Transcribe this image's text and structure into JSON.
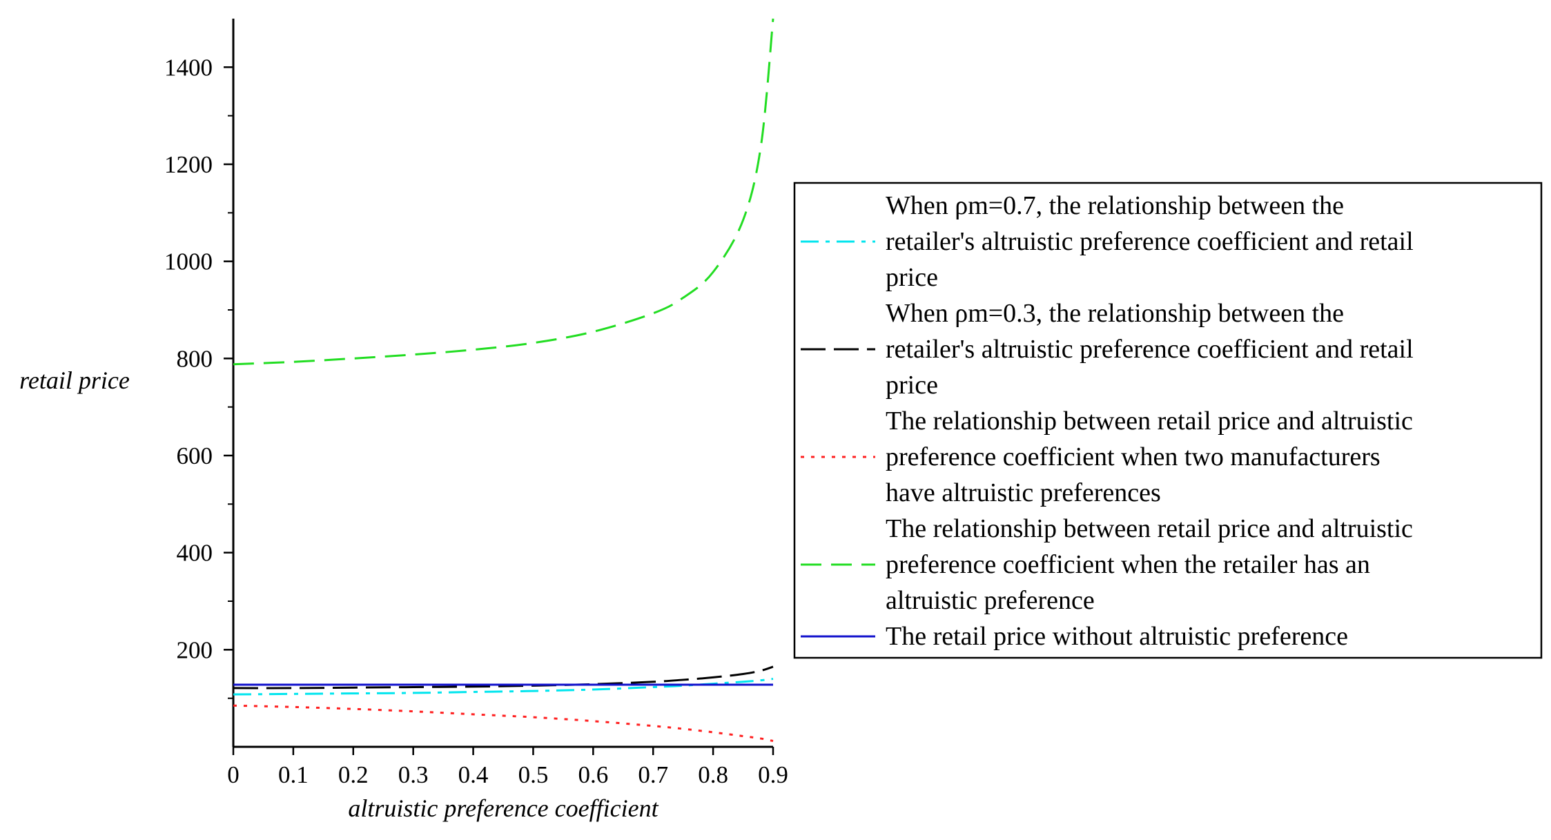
{
  "chart_data": {
    "type": "line",
    "title": "",
    "xlabel": "altruistic preference coefficient",
    "ylabel": "retail price",
    "xlim": [
      0,
      0.9
    ],
    "ylim": [
      0,
      1500
    ],
    "x_ticks": [
      0,
      0.1,
      0.2,
      0.3,
      0.4,
      0.5,
      0.6,
      0.7,
      0.8,
      0.9
    ],
    "x_tick_labels": [
      "0",
      "0.1",
      "0.2",
      "0.3",
      "0.4",
      "0.5",
      "0.6",
      "0.7",
      "0.8",
      "0.9"
    ],
    "y_ticks": [
      200,
      400,
      600,
      800,
      1000,
      1200,
      1400
    ],
    "y_tick_labels": [
      "200",
      "400",
      "600",
      "800",
      "1000",
      "1200",
      "1400"
    ],
    "y_minor_step": 100,
    "legend_position": "right",
    "x": [
      0,
      0.1,
      0.2,
      0.3,
      0.4,
      0.5,
      0.6,
      0.7,
      0.75,
      0.8,
      0.85,
      0.88,
      0.9
    ],
    "series": [
      {
        "name": "When ρm=0.7, the relationship  between the retailer's altruistic preference coefficient and retail price",
        "legend_lines": [
          "When ρm=0.7, the relationship  between the",
          "retailer's altruistic preference coefficient and retail",
          "price"
        ],
        "color": "#00e5ee",
        "dash": "dashdot",
        "values": [
          108,
          109,
          110,
          111,
          113,
          115,
          118,
          123,
          126,
          130,
          134,
          137,
          140
        ]
      },
      {
        "name": "When ρm=0.3, the relationship between the retailer's altruistic preference coefficient and retail price",
        "legend_lines": [
          "When ρm=0.3, the relationship between the",
          "retailer's altruistic preference coefficient and retail",
          "price"
        ],
        "color": "#000000",
        "dash": "longdash",
        "values": [
          121,
          121,
          122,
          123,
          124,
          126,
          129,
          134,
          138,
          143,
          150,
          157,
          165
        ]
      },
      {
        "name": "The relationship between retail price and altruistic preference coefficient when two manufacturers have altruistic preferences",
        "legend_lines": [
          "The relationship between retail price and altruistic",
          "preference coefficient when two manufacturers",
          "have altruistic preferences"
        ],
        "color": "#ff2020",
        "dash": "dot",
        "values": [
          85,
          82,
          78,
          73,
          67,
          61,
          53,
          43,
          37,
          30,
          22,
          17,
          12
        ]
      },
      {
        "name": "The relationship between retail price and altruistic preference coefficient when the retailer has an altruistic preference",
        "legend_lines": [
          "The relationship between retail price and altruistic",
          "preference coefficient when the retailer has an",
          "altruistic preference"
        ],
        "color": "#22dd22",
        "dash": "dash",
        "values": [
          788,
          793,
          800,
          808,
          818,
          832,
          855,
          893,
          925,
          978,
          1085,
          1240,
          1500
        ]
      },
      {
        "name": "The retail price without altruistic preference",
        "legend_lines": [
          "The retail price without altruistic preference"
        ],
        "color": "#1010cc",
        "dash": "solid",
        "values": [
          128,
          128,
          128,
          128,
          128,
          128,
          128,
          128,
          128,
          128,
          128,
          128,
          128
        ]
      }
    ]
  }
}
